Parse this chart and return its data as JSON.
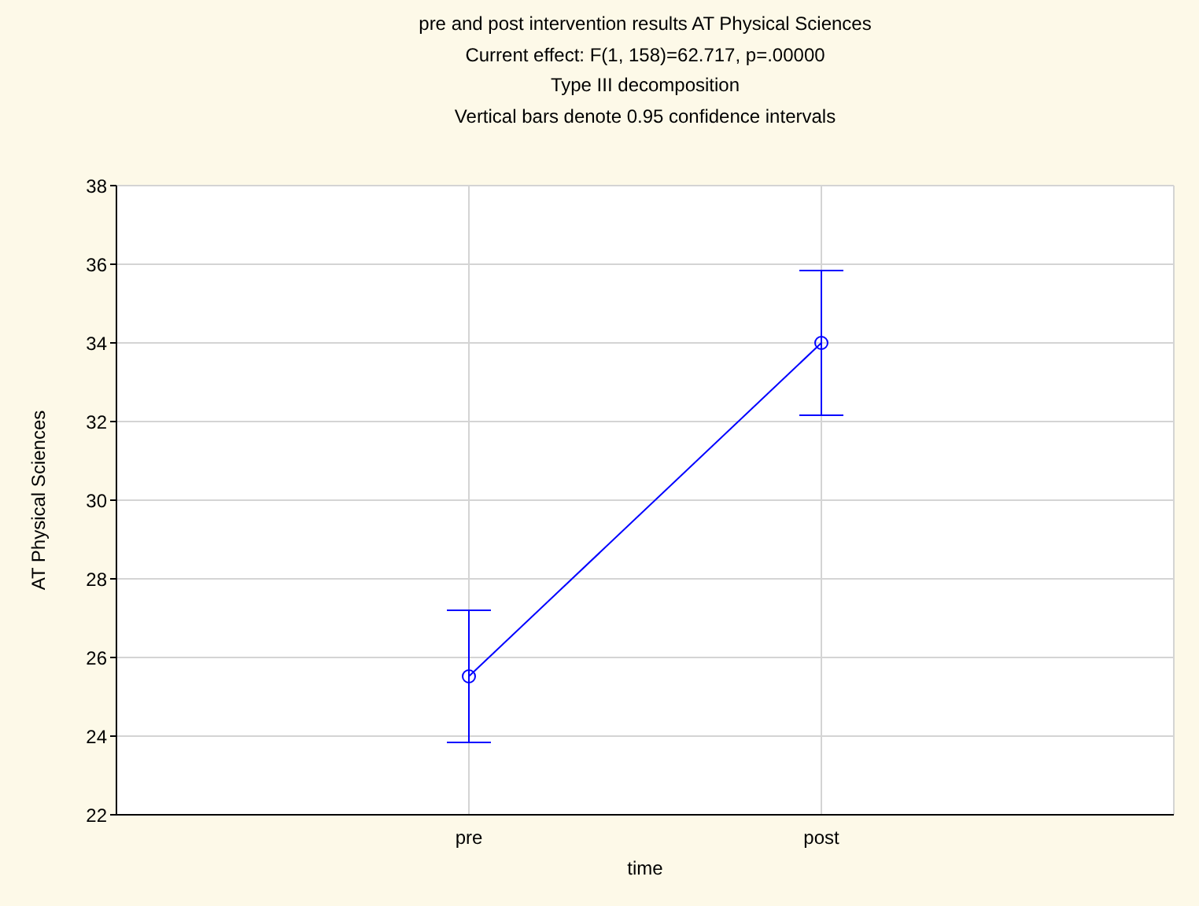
{
  "chart_data": {
    "type": "line",
    "title": "pre and post intervention results AT Physical Sciences",
    "subtitle": "Current effect: F(1, 158)=62.717, p=.00000",
    "annotations": [
      "Type III decomposition",
      "Vertical bars denote 0.95 confidence intervals"
    ],
    "xlabel": "time",
    "ylabel": "AT Physical Sciences",
    "categories": [
      "pre",
      "post"
    ],
    "series": [
      {
        "color": "#0000ff",
        "values": [
          25.52,
          34.0
        ],
        "errors": [
          [
            23.84,
            27.2
          ],
          [
            32.16,
            35.84
          ]
        ]
      }
    ],
    "ylim": [
      22,
      38
    ],
    "yticks": [
      22,
      24,
      26,
      28,
      30,
      32,
      34,
      36,
      38
    ],
    "grid": true,
    "marker": "circle",
    "line_style": "solid"
  }
}
